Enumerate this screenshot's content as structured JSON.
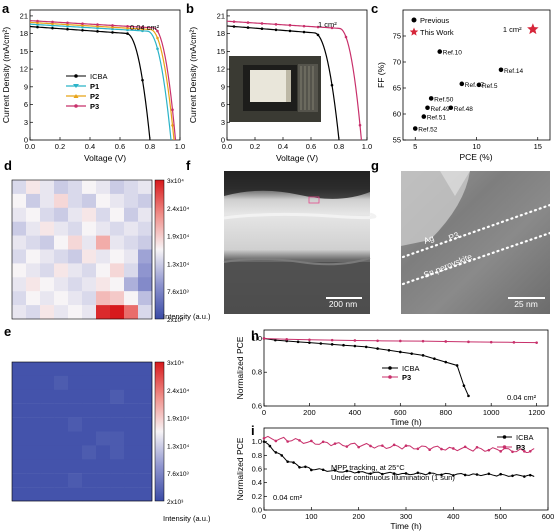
{
  "panels": {
    "a": "a",
    "b": "b",
    "c": "c",
    "d": "d",
    "e": "e",
    "f": "f",
    "g": "g",
    "h": "h",
    "i": "i"
  },
  "colors": {
    "icba": "#000000",
    "p1": "#2bb3c8",
    "p2": "#e8a317",
    "p3": "#c8306b",
    "previous": "#000000",
    "this_work": "#d6263a"
  },
  "chart_data": [
    {
      "id": "a",
      "type": "line",
      "annotation": "0.04 cm²",
      "xlabel": "Voltage (V)",
      "ylabel": "Current Density (mA/cm²)",
      "xlim": [
        0,
        1.0
      ],
      "ylim": [
        0,
        22
      ],
      "xticks": [
        "0.0",
        "0.2",
        "0.4",
        "0.6",
        "0.8",
        "1.0"
      ],
      "yticks": [
        "0",
        "3",
        "6",
        "9",
        "12",
        "15",
        "18",
        "21"
      ],
      "legend": [
        "ICBA",
        "P1",
        "P2",
        "P3"
      ],
      "series": [
        {
          "name": "ICBA",
          "jsc": 19.2,
          "voc": 0.8,
          "knee": 0.64
        },
        {
          "name": "P1",
          "jsc": 19.6,
          "voc": 0.94,
          "knee": 0.78
        },
        {
          "name": "P2",
          "jsc": 19.9,
          "voc": 0.96,
          "knee": 0.8
        },
        {
          "name": "P3",
          "jsc": 20.2,
          "voc": 0.97,
          "knee": 0.82
        }
      ]
    },
    {
      "id": "b",
      "type": "line",
      "annotation": "1 cm²",
      "xlabel": "Voltage (V)",
      "ylabel": "Current Density (mA/cm²)",
      "xlim": [
        0,
        1.0
      ],
      "ylim": [
        0,
        22
      ],
      "xticks": [
        "0.0",
        "0.2",
        "0.4",
        "0.6",
        "0.8",
        "1.0"
      ],
      "yticks": [
        "0",
        "3",
        "6",
        "9",
        "12",
        "15",
        "18",
        "21"
      ],
      "series": [
        {
          "name": "ICBA",
          "jsc": 19.3,
          "voc": 0.8,
          "knee": 0.62
        },
        {
          "name": "P3",
          "jsc": 20.1,
          "voc": 0.96,
          "knee": 0.8
        }
      ]
    },
    {
      "id": "c",
      "type": "scatter",
      "xlabel": "PCE (%)",
      "ylabel": "FF (%)",
      "xlim": [
        4,
        16
      ],
      "ylim": [
        55,
        80
      ],
      "xticks": [
        "5",
        "10",
        "15"
      ],
      "yticks": [
        "55",
        "60",
        "65",
        "70",
        "75"
      ],
      "legend": [
        "Previous",
        "This Work"
      ],
      "star_label": "1 cm²",
      "points": [
        {
          "x": 7.0,
          "y": 72.0,
          "label": "Ref.10"
        },
        {
          "x": 12.0,
          "y": 68.5,
          "label": "Ref.14"
        },
        {
          "x": 8.8,
          "y": 65.8,
          "label": "Ref.47"
        },
        {
          "x": 10.2,
          "y": 65.6,
          "label": "Ref.5"
        },
        {
          "x": 6.3,
          "y": 63.0,
          "label": "Ref.50"
        },
        {
          "x": 7.9,
          "y": 61.2,
          "label": "Ref.48"
        },
        {
          "x": 6.0,
          "y": 61.2,
          "label": "Ref.49"
        },
        {
          "x": 5.7,
          "y": 59.5,
          "label": "Ref.51"
        },
        {
          "x": 5.0,
          "y": 57.2,
          "label": "Ref.52"
        }
      ],
      "this_work": [
        {
          "x": 14.6,
          "y": 76.3
        }
      ]
    },
    {
      "id": "d",
      "type": "heatmap",
      "colorbar_ticks": [
        "3x10⁴",
        "2.4x10⁴",
        "1.9x10⁴",
        "1.3x10⁴",
        "7.6x10³",
        "2x10³"
      ],
      "colorbar_label": "Intensity (a.u.)",
      "range": [
        2000,
        30000
      ],
      "grid": [
        [
          14000,
          17000,
          15000,
          13000,
          14000,
          16000,
          15000,
          13000,
          14000,
          15000
        ],
        [
          16000,
          13000,
          15000,
          18000,
          14000,
          13000,
          16000,
          15000,
          14000,
          13000
        ],
        [
          15000,
          16000,
          14000,
          13000,
          15000,
          17000,
          14000,
          16000,
          13000,
          15000
        ],
        [
          13000,
          15000,
          17000,
          15000,
          14000,
          16000,
          15000,
          14000,
          15000,
          14000
        ],
        [
          15000,
          14000,
          13000,
          16000,
          18000,
          15000,
          21000,
          15000,
          14000,
          13000
        ],
        [
          14000,
          16000,
          15000,
          14000,
          13000,
          17000,
          15000,
          16000,
          15000,
          10000
        ],
        [
          16000,
          15000,
          14000,
          17000,
          15000,
          14000,
          16000,
          18000,
          14000,
          9000
        ],
        [
          15000,
          17000,
          16000,
          15000,
          14000,
          15000,
          17000,
          16000,
          11000,
          8000
        ],
        [
          14000,
          16000,
          15000,
          16000,
          15000,
          14000,
          20000,
          19000,
          16000,
          12000
        ],
        [
          15000,
          14000,
          17000,
          15000,
          16000,
          15000,
          29000,
          30000,
          25000,
          14000
        ]
      ]
    },
    {
      "id": "e",
      "type": "heatmap",
      "colorbar_ticks": [
        "3x10⁴",
        "2.4x10⁴",
        "1.9x10⁴",
        "1.3x10⁴",
        "7.6x10³",
        "2x10³"
      ],
      "colorbar_label": "Intensity (a.u.)",
      "range": [
        2000,
        30000
      ],
      "base": 2800,
      "spots": [
        {
          "r": 1,
          "c": 3,
          "v": 3600
        },
        {
          "r": 2,
          "c": 7,
          "v": 3600
        },
        {
          "r": 4,
          "c": 4,
          "v": 3500
        },
        {
          "r": 5,
          "c": 6,
          "v": 3600
        },
        {
          "r": 5,
          "c": 7,
          "v": 3500
        },
        {
          "r": 6,
          "c": 5,
          "v": 3600
        },
        {
          "r": 6,
          "c": 7,
          "v": 3500
        },
        {
          "r": 8,
          "c": 4,
          "v": 3500
        }
      ]
    },
    {
      "id": "h",
      "type": "line",
      "xlabel": "Time (h)",
      "ylabel": "Normalized PCE",
      "xlim": [
        0,
        1250
      ],
      "ylim": [
        0.6,
        1.05
      ],
      "xticks": [
        "0",
        "200",
        "400",
        "600",
        "800",
        "1000",
        "1200"
      ],
      "yticks": [
        "0.6",
        "0.8",
        "1.0"
      ],
      "annotation": "0.04 cm²",
      "legend": [
        "ICBA",
        "P3"
      ],
      "series": [
        {
          "name": "ICBA",
          "x": [
            0,
            50,
            100,
            150,
            200,
            250,
            300,
            350,
            400,
            450,
            500,
            550,
            600,
            650,
            700,
            750,
            800,
            850,
            880,
            900
          ],
          "y": [
            1.0,
            0.99,
            0.985,
            0.98,
            0.975,
            0.97,
            0.965,
            0.96,
            0.955,
            0.95,
            0.94,
            0.93,
            0.92,
            0.91,
            0.9,
            0.88,
            0.86,
            0.84,
            0.72,
            0.66
          ]
        },
        {
          "name": "P3",
          "x": [
            0,
            100,
            200,
            300,
            400,
            500,
            600,
            700,
            800,
            900,
            1000,
            1100,
            1200
          ],
          "y": [
            1.0,
            0.995,
            0.992,
            0.99,
            0.988,
            0.986,
            0.985,
            0.984,
            0.982,
            0.98,
            0.978,
            0.977,
            0.975
          ]
        }
      ]
    },
    {
      "id": "i",
      "type": "line",
      "xlabel": "Time (h)",
      "ylabel": "Normalized PCE",
      "xlim": [
        0,
        600
      ],
      "ylim": [
        0,
        1.2
      ],
      "xticks": [
        "0",
        "100",
        "200",
        "300",
        "400",
        "500",
        "600"
      ],
      "yticks": [
        "0.0",
        "0.2",
        "0.4",
        "0.6",
        "0.8",
        "1.0"
      ],
      "annotation": "0.04 cm²",
      "note": [
        "MPP tracking, at 25°C",
        "Under continuous illumination (1 sun)"
      ],
      "legend": [
        "ICBA",
        "P3"
      ],
      "series": [
        {
          "name": "ICBA",
          "x": [
            0,
            25,
            50,
            75,
            100,
            150,
            200,
            250,
            300,
            350,
            400,
            450,
            500,
            550,
            575
          ],
          "y": [
            1.0,
            0.85,
            0.72,
            0.64,
            0.6,
            0.57,
            0.55,
            0.54,
            0.53,
            0.53,
            0.52,
            0.52,
            0.51,
            0.5,
            0.49
          ]
        },
        {
          "name": "P3",
          "x": [
            0,
            50,
            100,
            150,
            200,
            250,
            300,
            350,
            400,
            450,
            500,
            550,
            575
          ],
          "y": [
            1.05,
            1.03,
            0.99,
            0.96,
            0.95,
            0.93,
            0.92,
            0.91,
            0.9,
            0.89,
            0.88,
            0.87,
            0.87
          ]
        }
      ]
    }
  ],
  "images": {
    "f_scale": "200 nm",
    "g_scale": "25 nm",
    "g_labels": [
      "Ag",
      "P3",
      "Sn perovskite"
    ]
  }
}
